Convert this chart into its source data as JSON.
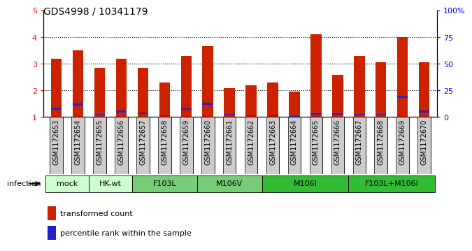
{
  "title": "GDS4998 / 10341179",
  "samples": [
    "GSM1172653",
    "GSM1172654",
    "GSM1172655",
    "GSM1172656",
    "GSM1172657",
    "GSM1172658",
    "GSM1172659",
    "GSM1172660",
    "GSM1172661",
    "GSM1172662",
    "GSM1172663",
    "GSM1172664",
    "GSM1172665",
    "GSM1172666",
    "GSM1172667",
    "GSM1172668",
    "GSM1172669",
    "GSM1172670"
  ],
  "red_values": [
    3.2,
    3.5,
    2.85,
    3.2,
    2.85,
    2.3,
    3.3,
    3.65,
    2.1,
    2.2,
    2.3,
    1.95,
    4.1,
    2.6,
    3.3,
    3.05,
    4.0,
    3.05
  ],
  "blue_values": [
    0.07,
    0.08,
    0.05,
    0.07,
    0.06,
    0.04,
    0.06,
    0.08,
    0.05,
    0.04,
    0.04,
    0.03,
    0.06,
    0.06,
    0.05,
    0.05,
    0.08,
    0.06
  ],
  "blue_bottoms": [
    1.28,
    1.42,
    1.08,
    1.18,
    1.12,
    1.03,
    1.28,
    1.47,
    1.08,
    1.03,
    1.03,
    1.0,
    1.08,
    1.08,
    1.08,
    1.08,
    1.72,
    1.18
  ],
  "groups": [
    {
      "label": "mock",
      "color": "#ccffcc",
      "start": 0,
      "end": 2
    },
    {
      "label": "HK-wt",
      "color": "#ccffcc",
      "start": 2,
      "end": 4
    },
    {
      "label": "F103L",
      "color": "#77cc77",
      "start": 4,
      "end": 7
    },
    {
      "label": "M106V",
      "color": "#77cc77",
      "start": 7,
      "end": 10
    },
    {
      "label": "M106I",
      "color": "#33bb33",
      "start": 10,
      "end": 14
    },
    {
      "label": "F103L+M106I",
      "color": "#33bb33",
      "start": 14,
      "end": 18
    }
  ],
  "ylim_left": [
    1,
    5
  ],
  "ylim_right": [
    0,
    100
  ],
  "yticks_left": [
    1,
    2,
    3,
    4,
    5
  ],
  "yticks_right": [
    0,
    25,
    50,
    75,
    100
  ],
  "yticklabels_right": [
    "0",
    "25",
    "50",
    "75",
    "100%"
  ],
  "bar_color": "#cc2200",
  "blue_color": "#2222cc",
  "bar_width": 0.5,
  "infection_label": "infection",
  "legend_items": [
    "transformed count",
    "percentile rank within the sample"
  ],
  "bg_color": "#ffffff",
  "title_fontsize": 10,
  "label_fontsize": 7,
  "group_fontsize": 8
}
